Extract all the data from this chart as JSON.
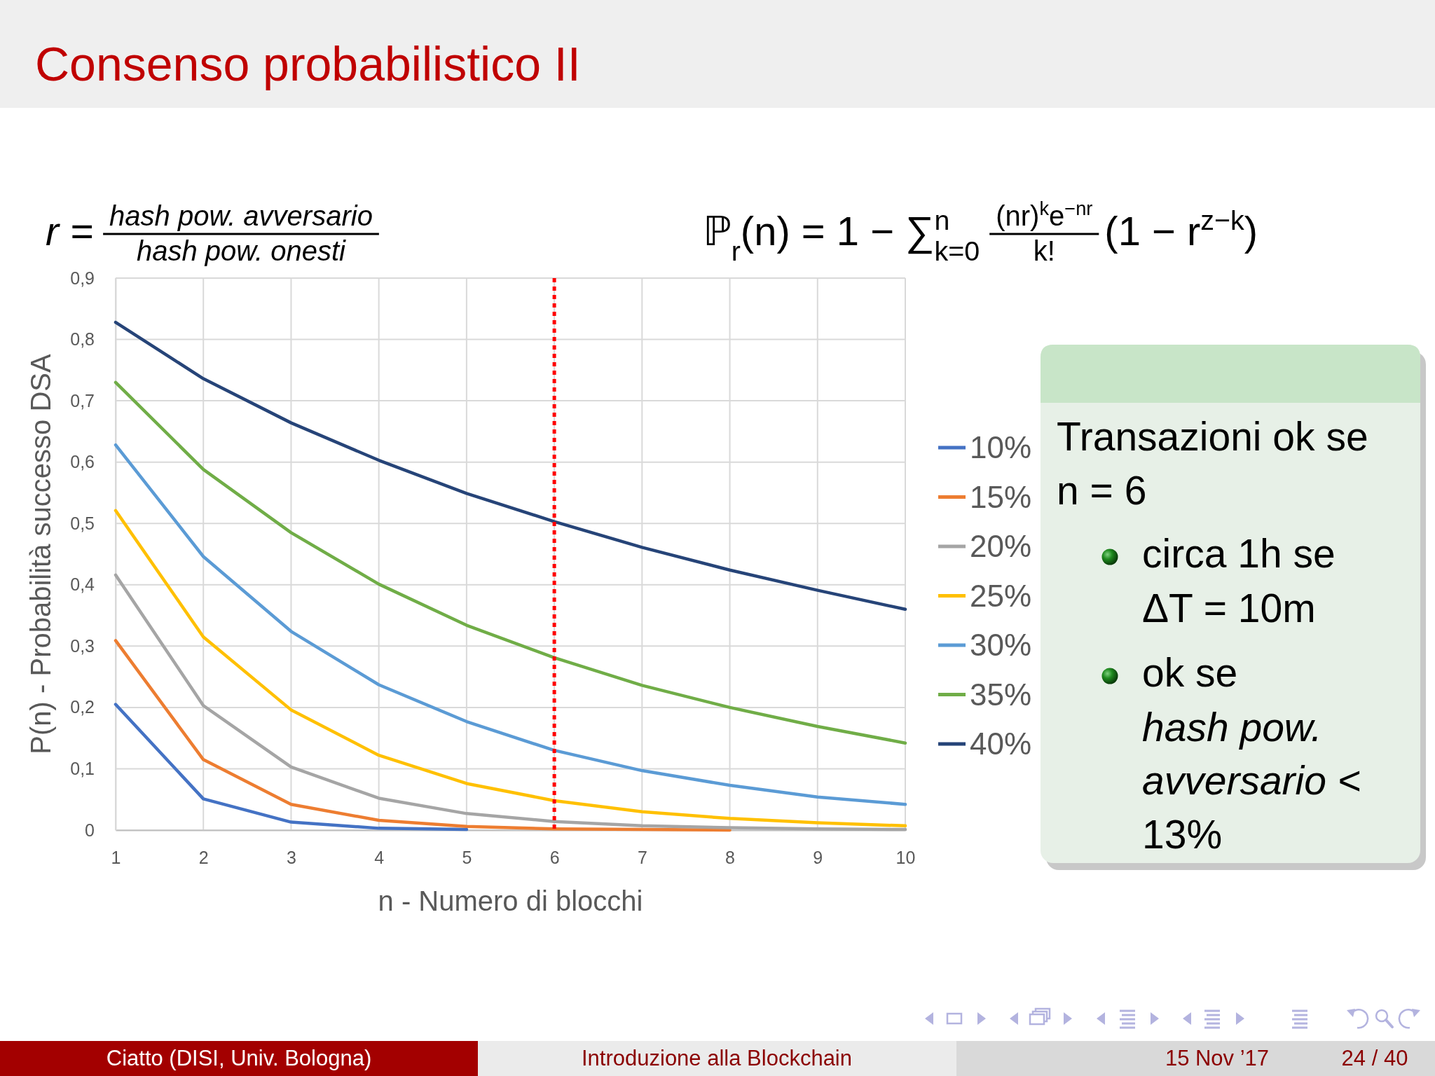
{
  "chart_data": {
    "type": "line",
    "title": "Consenso probabilistico II",
    "xlabel": "n - Numero di blocchi",
    "ylabel": "P(n) - Probabilità successo DSA",
    "x": [
      1,
      2,
      3,
      4,
      5,
      6,
      7,
      8,
      9,
      10
    ],
    "xlim": [
      1,
      10
    ],
    "xticks": [
      1,
      2,
      3,
      4,
      5,
      6,
      7,
      8,
      9,
      10
    ],
    "ylim": [
      0,
      0.9
    ],
    "yticks": [
      0,
      {
        "value": 0.1,
        "label": "0,1"
      },
      {
        "value": 0.2,
        "label": "0,2"
      },
      {
        "value": 0.3,
        "label": "0,3"
      },
      {
        "value": 0.4,
        "label": "0,4"
      },
      {
        "value": 0.5,
        "label": "0,5"
      },
      {
        "value": 0.6,
        "label": "0,6"
      },
      {
        "value": 0.7,
        "label": "0,7"
      },
      {
        "value": 0.8,
        "label": "0,8"
      },
      {
        "value": 0.9,
        "label": "0,9"
      }
    ],
    "series": [
      {
        "name": "10%",
        "color": "#4472c4",
        "values": [
          0.205,
          0.051,
          0.013,
          0.003,
          0.001,
          null,
          null,
          null,
          null,
          null
        ]
      },
      {
        "name": "15%",
        "color": "#ed7d31",
        "values": [
          0.309,
          0.115,
          0.042,
          0.016,
          0.006,
          0.002,
          0.001,
          0,
          null,
          null
        ]
      },
      {
        "name": "20%",
        "color": "#a5a5a5",
        "values": [
          0.416,
          0.203,
          0.103,
          0.052,
          0.027,
          0.014,
          0.007,
          0.004,
          0.002,
          0.001
        ]
      },
      {
        "name": "25%",
        "color": "#ffc000",
        "values": [
          0.521,
          0.315,
          0.196,
          0.122,
          0.076,
          0.048,
          0.03,
          0.019,
          0.012,
          0.007
        ]
      },
      {
        "name": "30%",
        "color": "#5b9bd5",
        "values": [
          0.628,
          0.446,
          0.324,
          0.237,
          0.177,
          0.13,
          0.097,
          0.073,
          0.054,
          0.042
        ]
      },
      {
        "name": "35%",
        "color": "#70ad47",
        "values": [
          0.73,
          0.588,
          0.485,
          0.401,
          0.334,
          0.281,
          0.236,
          0.2,
          0.169,
          0.142
        ]
      },
      {
        "name": "40%",
        "color": "#264478",
        "values": [
          0.828,
          0.736,
          0.664,
          0.603,
          0.549,
          0.503,
          0.461,
          0.424,
          0.391,
          0.36
        ]
      }
    ],
    "ref_lines": [
      {
        "axis": "x",
        "value": 6,
        "color": "#ff0000",
        "line_style": "dotted"
      }
    ],
    "grid": true,
    "legend": "right",
    "annotations": [
      "r =",
      "hash pow. avversario",
      "hash pow. onesti",
      "ℙ$_{r}$(n) = 1 − ∑$_{k=0}$$^{n}$",
      "(nr)$^{k}$e$^{−nr}$",
      "k!",
      "(1 − r$^{z−k}$)",
      "Transazioni ok se",
      "n = 6",
      "circa 1h se",
      "ΔT = 10m",
      "ok se",
      "hash pow.",
      "avversario <",
      "13%",
      "Ciatto (DISI, Univ. Bologna)",
      "Introduzione alla Blockchain",
      "15 Nov ’17",
      "24 / 40"
    ]
  }
}
